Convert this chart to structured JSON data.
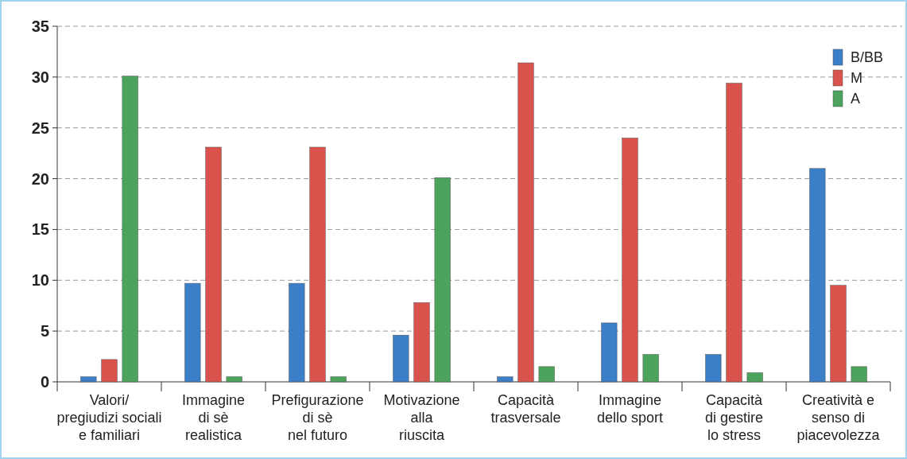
{
  "chart_data": {
    "type": "bar",
    "categories": [
      "Valori/\npregiudizi sociali\ne familiari",
      "Immagine\ndi sè\nrealistica",
      "Prefigurazione\ndi sè\nnel futuro",
      "Motivazione\nalla\nriuscita",
      "Capacità\ntrasversale",
      "Immagine\ndello sport",
      "Capacità\ndi gestire\nlo stress",
      "Creatività e\nsenso di\npiacevolezza"
    ],
    "series": [
      {
        "name": "B/BB",
        "color": "#3b7fc8",
        "values": [
          0.5,
          9.7,
          9.7,
          4.6,
          0.5,
          5.8,
          2.7,
          21.0
        ]
      },
      {
        "name": "M",
        "color": "#d9534c",
        "values": [
          2.2,
          23.1,
          23.1,
          7.8,
          31.4,
          24.0,
          29.4,
          9.5
        ]
      },
      {
        "name": "A",
        "color": "#4ba35c",
        "values": [
          30.1,
          0.5,
          0.5,
          20.1,
          1.5,
          2.7,
          0.9,
          1.5
        ]
      }
    ],
    "ylim": [
      0,
      35
    ],
    "yticks": [
      0,
      5,
      10,
      15,
      20,
      25,
      30,
      35
    ],
    "grid": "y",
    "legend": "top right"
  }
}
